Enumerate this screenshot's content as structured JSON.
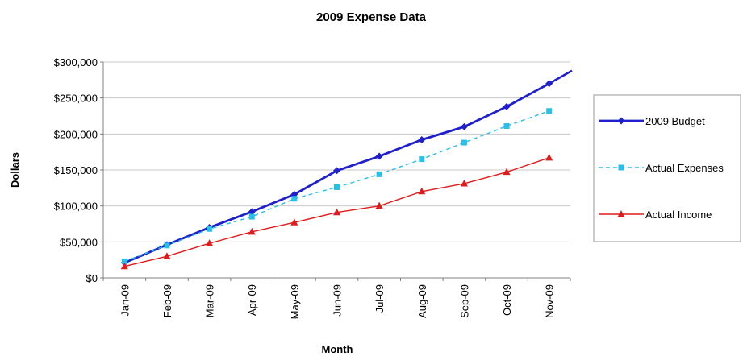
{
  "chart_data": {
    "type": "line",
    "title": "2009 Expense Data",
    "xlabel": "Month",
    "ylabel": "Dollars",
    "categories": [
      "Jan-09",
      "Feb-09",
      "Mar-09",
      "Apr-09",
      "May-09",
      "Jun-09",
      "Jul-09",
      "Aug-09",
      "Sep-09",
      "Oct-09",
      "Nov-09"
    ],
    "ylim": [
      0,
      300000
    ],
    "yticks": [
      "$0",
      "$50,000",
      "$100,000",
      "$150,000",
      "$200,000",
      "$250,000",
      "$300,000"
    ],
    "grid": true,
    "legend_position": "right",
    "series": [
      {
        "name": "2009 Budget",
        "color": "#1f1fcc",
        "marker": "diamond",
        "line": "solid",
        "values": [
          21000,
          46000,
          70000,
          92000,
          116000,
          149000,
          169000,
          192000,
          210000,
          238000,
          270000
        ],
        "trend_end": 288000
      },
      {
        "name": "Actual Expenses",
        "color": "#29bfe6",
        "marker": "square",
        "line": "dashed",
        "values": [
          23000,
          45000,
          68000,
          85000,
          110000,
          126000,
          144000,
          165000,
          188000,
          211000,
          232000
        ]
      },
      {
        "name": "Actual Income",
        "color": "#e01b1b",
        "marker": "triangle",
        "line": "solid",
        "values": [
          16000,
          30000,
          48000,
          64000,
          77000,
          91000,
          100000,
          120000,
          131000,
          147000,
          167000
        ]
      }
    ]
  }
}
